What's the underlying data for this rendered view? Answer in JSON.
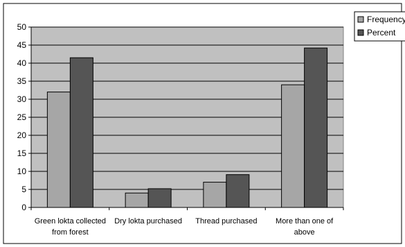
{
  "chart_data": {
    "type": "bar",
    "categories": [
      [
        "Green lokta collected",
        "from forest"
      ],
      [
        "Dry lokta purchased"
      ],
      [
        "Thread purchased"
      ],
      [
        "More than one of",
        "above"
      ]
    ],
    "series": [
      {
        "name": "Frequency",
        "values": [
          32,
          4,
          7,
          34
        ],
        "color": "#a6a6a6"
      },
      {
        "name": "Percent",
        "values": [
          41.5,
          5.2,
          9.1,
          44.2
        ],
        "color": "#555555"
      }
    ],
    "ylim": [
      0,
      50
    ],
    "yticks": [
      0,
      5,
      10,
      15,
      20,
      25,
      30,
      35,
      40,
      45,
      50
    ],
    "grid": true,
    "plot_background": "#c0c0c0",
    "legend_position": "top-right"
  }
}
